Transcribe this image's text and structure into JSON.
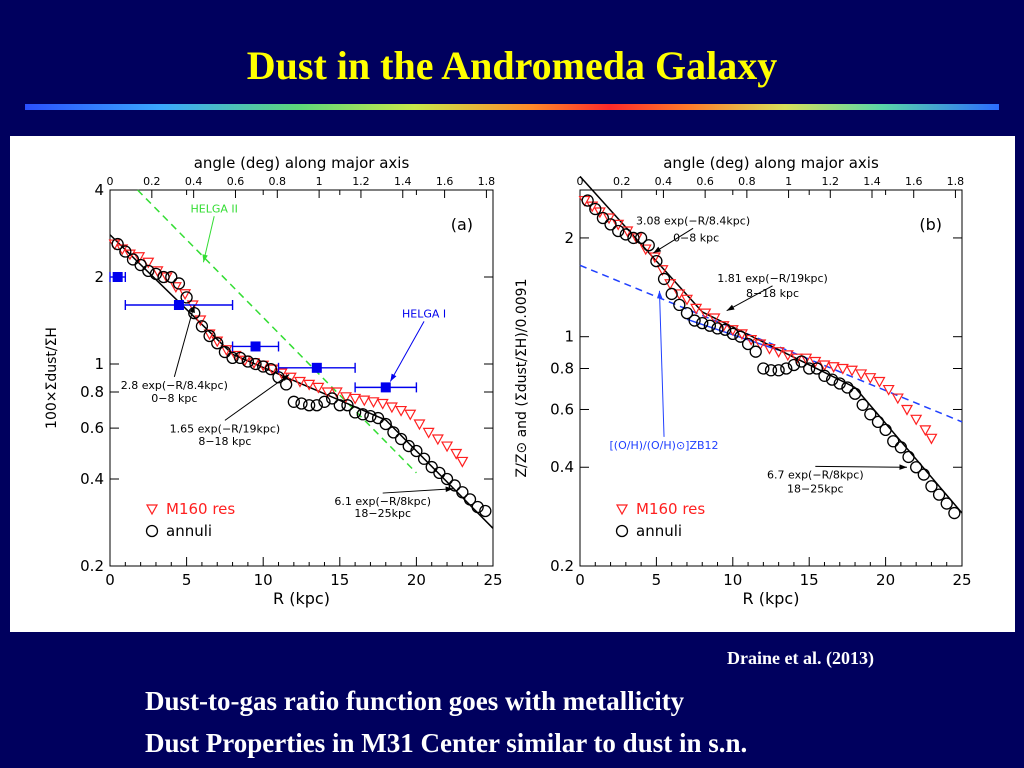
{
  "slide": {
    "title": "Dust in the Andromeda Galaxy",
    "citation": "Draine et al. (2013)",
    "bullets": [
      "Dust-to-gas ratio function goes with metallicity",
      "Dust Properties in M31 Center similar to dust in s.n."
    ]
  },
  "colors": {
    "background": "#00005e",
    "title": "#ffff00",
    "m160": "#ff2020",
    "annuli": "#000000",
    "helga": "#0000ee",
    "helga2_line": "#33dd33",
    "fit": "#000000",
    "metal": "#2040ff"
  },
  "chart_data": [
    {
      "type": "scatter",
      "panel_label": "(a)",
      "xlabel": "R (kpc)",
      "ylabel": "100×Σdust/ΣH",
      "top_axis_label": "angle (deg) along major axis",
      "top_ticks": [
        "0",
        "0.2",
        "0.4",
        "0.6",
        "0.8",
        "1",
        "1.2",
        "1.4",
        "1.6",
        "1.8"
      ],
      "top_tick_values": [
        0,
        0.2,
        0.4,
        0.6,
        0.8,
        1.0,
        1.2,
        1.4,
        1.6,
        1.8
      ],
      "deg_to_kpc": 13.65,
      "xlim": [
        0,
        25
      ],
      "ylim": [
        0.2,
        4
      ],
      "yscale": "log",
      "x_ticks": [
        0,
        5,
        10,
        15,
        20,
        25
      ],
      "y_ticks": [
        {
          "v": 0.2,
          "label": "0.2"
        },
        {
          "v": 0.4,
          "label": "0.4"
        },
        {
          "v": 0.6,
          "label": "0.6"
        },
        {
          "v": 0.8,
          "label": "0.8"
        },
        {
          "v": 1,
          "label": "1"
        },
        {
          "v": 2,
          "label": "2"
        },
        {
          "v": 4,
          "label": "4"
        }
      ],
      "legend": [
        {
          "marker": "triangle-down",
          "label": "M160 res",
          "color": "#ff2020"
        },
        {
          "marker": "circle",
          "label": "annuli",
          "color": "#000000"
        }
      ],
      "series": [
        {
          "name": "M160 res",
          "marker": "triangle-down",
          "x": [
            0.3,
            0.8,
            1.3,
            1.9,
            2.5,
            3.1,
            3.7,
            4.3,
            4.9,
            5.4,
            5.9,
            6.5,
            7.0,
            7.6,
            8.2,
            8.8,
            9.4,
            10.0,
            10.6,
            11.2,
            11.8,
            12.4,
            13.0,
            13.6,
            14.2,
            14.8,
            15.4,
            16.0,
            16.6,
            17.2,
            17.8,
            18.4,
            19.0,
            19.6,
            20.2,
            20.8,
            21.4,
            22.0,
            22.6,
            23.0
          ],
          "y": [
            2.6,
            2.5,
            2.4,
            2.35,
            2.25,
            2.1,
            2.0,
            1.85,
            1.75,
            1.6,
            1.42,
            1.27,
            1.2,
            1.12,
            1.07,
            1.03,
            1.01,
            0.99,
            0.96,
            0.93,
            0.9,
            0.87,
            0.85,
            0.83,
            0.8,
            0.8,
            0.77,
            0.76,
            0.75,
            0.74,
            0.73,
            0.71,
            0.69,
            0.67,
            0.62,
            0.58,
            0.55,
            0.52,
            0.49,
            0.46
          ]
        },
        {
          "name": "annuli",
          "marker": "circle",
          "x": [
            0.5,
            1.0,
            1.5,
            2.0,
            2.5,
            3.0,
            3.5,
            4.0,
            4.5,
            5.0,
            5.5,
            6.0,
            6.5,
            7.0,
            7.5,
            8.0,
            8.5,
            9.0,
            9.5,
            10.0,
            10.5,
            11.0,
            11.5,
            12.0,
            12.5,
            13.0,
            13.5,
            14.0,
            14.5,
            15.0,
            15.5,
            16.0,
            16.5,
            17.0,
            17.5,
            18.0,
            18.5,
            19.0,
            19.5,
            20.0,
            20.5,
            21.0,
            21.5,
            22.0,
            22.5,
            23.0,
            23.5,
            24.0,
            24.5
          ],
          "y": [
            2.6,
            2.45,
            2.3,
            2.2,
            2.1,
            2.05,
            2.0,
            2.0,
            1.9,
            1.7,
            1.5,
            1.35,
            1.25,
            1.18,
            1.1,
            1.05,
            1.05,
            1.02,
            1.0,
            0.98,
            0.96,
            0.9,
            0.85,
            0.74,
            0.73,
            0.72,
            0.72,
            0.74,
            0.76,
            0.72,
            0.72,
            0.68,
            0.67,
            0.66,
            0.65,
            0.62,
            0.58,
            0.55,
            0.52,
            0.5,
            0.47,
            0.44,
            0.42,
            0.4,
            0.38,
            0.36,
            0.34,
            0.32,
            0.31
          ]
        },
        {
          "name": "HELGA I",
          "marker": "square",
          "color": "#0000ee",
          "x": [
            0.5,
            4.5,
            9.5,
            13.5,
            18.0
          ],
          "xerr": [
            0.5,
            3.5,
            1.5,
            2.5,
            2.0
          ],
          "y": [
            2.0,
            1.6,
            1.15,
            0.97,
            0.83
          ]
        }
      ],
      "lines": [
        {
          "label": "HELGA II",
          "style": "dashed",
          "color": "#33dd33",
          "x": [
            1.8,
            20.0
          ],
          "y": [
            4.0,
            0.42
          ]
        },
        {
          "style": "solid",
          "color": "#000000",
          "x": [
            0,
            8
          ],
          "y": [
            2.8,
            1.08
          ]
        },
        {
          "style": "solid",
          "color": "#000000",
          "x": [
            8,
            18
          ],
          "y": [
            1.08,
            0.64
          ]
        },
        {
          "style": "solid",
          "color": "#000000",
          "x": [
            18,
            25
          ],
          "y": [
            0.64,
            0.27
          ]
        }
      ],
      "annotations": [
        {
          "text": "HELGA II",
          "color": "#33dd33",
          "x": 6.8,
          "y": 3.35,
          "ax": 6.1,
          "ay": 2.25
        },
        {
          "text": "HELGA I",
          "color": "#0000ee",
          "x": 20.5,
          "y": 1.45,
          "ax": 18.3,
          "ay": 0.87
        },
        {
          "text": "2.8 exp(−R/8.4kpc)",
          "x": 4.2,
          "y": 0.82,
          "ax": 5.5,
          "ay": 1.6
        },
        {
          "text": "0−8 kpc",
          "x": 4.2,
          "y": 0.74
        },
        {
          "text": "1.65 exp(−R/19kpc)",
          "x": 7.5,
          "y": 0.58,
          "ax": 11.7,
          "ay": 0.92
        },
        {
          "text": "8−18 kpc",
          "x": 7.5,
          "y": 0.525
        },
        {
          "text": "6.1 exp(−R/8kpc)",
          "x": 17.8,
          "y": 0.325,
          "ax": 22.4,
          "ay": 0.37
        },
        {
          "text": "18−25kpc",
          "x": 17.8,
          "y": 0.295
        }
      ]
    },
    {
      "type": "scatter",
      "panel_label": "(b)",
      "xlabel": "R (kpc)",
      "ylabel": "Z/Z⊙ and (Σdust/ΣH)/0.0091",
      "top_axis_label": "angle (deg) along major axis",
      "top_ticks": [
        "0",
        "0.2",
        "0.4",
        "0.6",
        "0.8",
        "1",
        "1.2",
        "1.4",
        "1.6",
        "1.8"
      ],
      "top_tick_values": [
        0,
        0.2,
        0.4,
        0.6,
        0.8,
        1.0,
        1.2,
        1.4,
        1.6,
        1.8
      ],
      "deg_to_kpc": 13.65,
      "xlim": [
        0,
        25
      ],
      "ylim": [
        0.2,
        2.8
      ],
      "yscale": "log",
      "x_ticks": [
        0,
        5,
        10,
        15,
        20,
        25
      ],
      "y_ticks": [
        {
          "v": 0.2,
          "label": "0.2"
        },
        {
          "v": 0.4,
          "label": "0.4"
        },
        {
          "v": 0.6,
          "label": "0.6"
        },
        {
          "v": 0.8,
          "label": "0.8"
        },
        {
          "v": 1,
          "label": "1"
        },
        {
          "v": 2,
          "label": "2"
        }
      ],
      "legend": [
        {
          "marker": "triangle-down",
          "label": "M160 res",
          "color": "#ff2020"
        },
        {
          "marker": "circle",
          "label": "annuli",
          "color": "#000000"
        }
      ],
      "series": [
        {
          "name": "M160 res",
          "marker": "triangle-down",
          "x": [
            0.3,
            0.8,
            1.3,
            1.9,
            2.5,
            3.1,
            3.7,
            4.3,
            4.9,
            5.4,
            5.9,
            6.5,
            7.0,
            7.6,
            8.2,
            8.8,
            9.4,
            10.0,
            10.6,
            11.2,
            11.8,
            12.4,
            13.0,
            13.6,
            14.2,
            14.8,
            15.4,
            16.0,
            16.6,
            17.2,
            17.8,
            18.4,
            19.0,
            19.6,
            20.2,
            20.8,
            21.4,
            22.0,
            22.6,
            23.0
          ],
          "y": [
            2.6,
            2.5,
            2.4,
            2.3,
            2.2,
            2.1,
            2.0,
            1.85,
            1.75,
            1.6,
            1.45,
            1.35,
            1.3,
            1.22,
            1.18,
            1.14,
            1.08,
            1.05,
            1.02,
            0.98,
            0.95,
            0.92,
            0.9,
            0.88,
            0.86,
            0.86,
            0.84,
            0.82,
            0.81,
            0.8,
            0.79,
            0.77,
            0.75,
            0.73,
            0.69,
            0.65,
            0.6,
            0.56,
            0.52,
            0.49
          ]
        },
        {
          "name": "annuli",
          "marker": "circle",
          "x": [
            0.5,
            1.0,
            1.5,
            2.0,
            2.5,
            3.0,
            3.5,
            4.0,
            4.5,
            5.0,
            5.5,
            6.0,
            6.5,
            7.0,
            7.5,
            8.0,
            8.5,
            9.0,
            9.5,
            10.0,
            10.5,
            11.0,
            11.5,
            12.0,
            12.5,
            13.0,
            13.5,
            14.0,
            14.5,
            15.0,
            15.5,
            16.0,
            16.5,
            17.0,
            17.5,
            18.0,
            18.5,
            19.0,
            19.5,
            20.0,
            20.5,
            21.0,
            21.5,
            22.0,
            22.5,
            23.0,
            23.5,
            24.0,
            24.5
          ],
          "y": [
            2.6,
            2.45,
            2.3,
            2.2,
            2.1,
            2.05,
            2.0,
            2.0,
            1.9,
            1.7,
            1.5,
            1.35,
            1.25,
            1.18,
            1.12,
            1.1,
            1.08,
            1.06,
            1.05,
            1.02,
            1.0,
            0.95,
            0.9,
            0.8,
            0.79,
            0.79,
            0.8,
            0.82,
            0.84,
            0.8,
            0.8,
            0.76,
            0.74,
            0.72,
            0.7,
            0.67,
            0.62,
            0.58,
            0.55,
            0.52,
            0.48,
            0.46,
            0.43,
            0.4,
            0.38,
            0.35,
            0.33,
            0.31,
            0.29
          ]
        },
        {
          "name": "[(O/H)/(O/H)⊙]ZB12",
          "marker": "line",
          "color": "#2040ff",
          "x": [
            0,
            25
          ],
          "y": [
            1.65,
            0.55
          ]
        }
      ],
      "lines": [
        {
          "label": "[(O/H)/(O/H)⊙]ZB12",
          "style": "dashed",
          "color": "#2040ff",
          "x": [
            0,
            25
          ],
          "y": [
            1.65,
            0.55
          ]
        },
        {
          "style": "solid",
          "color": "#2040ff",
          "x": [
            7,
            13
          ],
          "y": [
            1.13,
            0.91
          ]
        },
        {
          "style": "solid",
          "color": "#000000",
          "x": [
            0,
            8
          ],
          "y": [
            3.08,
            1.19
          ]
        },
        {
          "style": "solid",
          "color": "#000000",
          "x": [
            8,
            18
          ],
          "y": [
            1.19,
            0.7
          ]
        },
        {
          "style": "solid",
          "color": "#000000",
          "x": [
            18,
            25
          ],
          "y": [
            0.7,
            0.29
          ]
        }
      ],
      "annotations": [
        {
          "text": "3.08 exp(−R/8.4kpc)",
          "x": 7.4,
          "y": 2.2,
          "ax": 4.8,
          "ay": 1.8
        },
        {
          "text": "0−8 kpc",
          "x": 7.6,
          "y": 1.95
        },
        {
          "text": "1.81 exp(−R/19kpc)",
          "x": 12.6,
          "y": 1.47,
          "ax": 9.6,
          "ay": 1.2
        },
        {
          "text": "8−18 kpc",
          "x": 12.6,
          "y": 1.32
        },
        {
          "text": "[(O/H)/(O/H)⊙]ZB12",
          "x": 5.5,
          "y": 0.455,
          "ax": 5.2,
          "ay": 1.38,
          "color": "#2040ff"
        },
        {
          "text": "6.7 exp(−R/8kpc)",
          "x": 15.4,
          "y": 0.37,
          "ax": 21.4,
          "ay": 0.4
        },
        {
          "text": "18−25kpc",
          "x": 15.4,
          "y": 0.335
        }
      ]
    }
  ]
}
